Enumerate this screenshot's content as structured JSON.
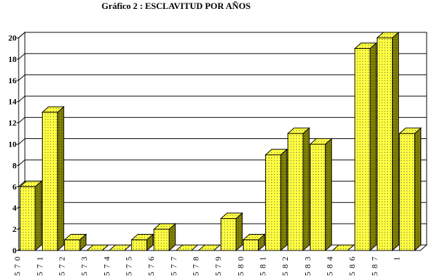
{
  "chart_data": {
    "type": "bar3d",
    "title": "Gráfico 2 : ESCLAVITUD POR AÑOS",
    "categories": [
      "570",
      "571",
      "572",
      "573",
      "574",
      "575",
      "576",
      "577",
      "578",
      "579",
      "580",
      "581",
      "582",
      "583",
      "584",
      "586",
      "587",
      "1"
    ],
    "values": [
      6,
      13,
      1,
      0,
      0,
      1,
      2,
      0,
      0,
      3,
      1,
      9,
      11,
      10,
      0,
      19,
      20,
      11
    ],
    "color": "#ffff40",
    "ylim": [
      0,
      20
    ],
    "yticks": [
      0,
      2,
      4,
      6,
      8,
      10,
      12,
      14,
      16,
      18,
      20
    ],
    "grid": true
  }
}
